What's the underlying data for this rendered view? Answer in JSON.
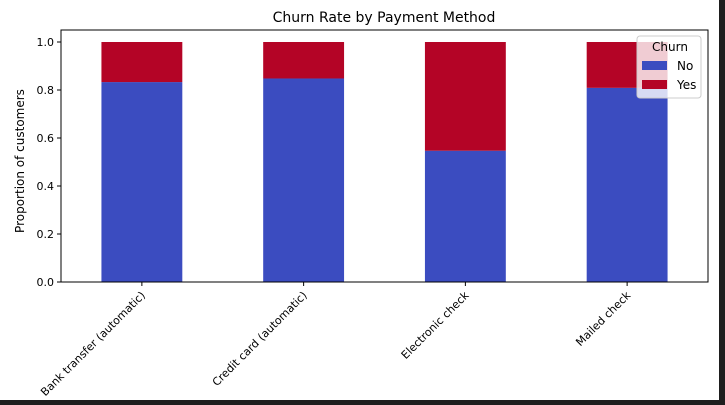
{
  "chart_data": {
    "type": "bar",
    "stacked": true,
    "title": "Churn Rate by Payment Method",
    "xlabel": "",
    "ylabel": "Proportion of customers",
    "ylim": [
      0,
      1.0
    ],
    "yticks": [
      "0.0",
      "0.2",
      "0.4",
      "0.6",
      "0.8",
      "1.0"
    ],
    "categories": [
      "Bank transfer (automatic)",
      "Credit card (automatic)",
      "Electronic check",
      "Mailed check"
    ],
    "series": [
      {
        "name": "No",
        "color": "#3b4cc0",
        "values": [
          0.833,
          0.848,
          0.547,
          0.809
        ]
      },
      {
        "name": "Yes",
        "color": "#b40426",
        "values": [
          0.167,
          0.152,
          0.453,
          0.191
        ]
      }
    ],
    "legend": {
      "title": "Churn",
      "placement": "top-right"
    },
    "grid": false
  }
}
